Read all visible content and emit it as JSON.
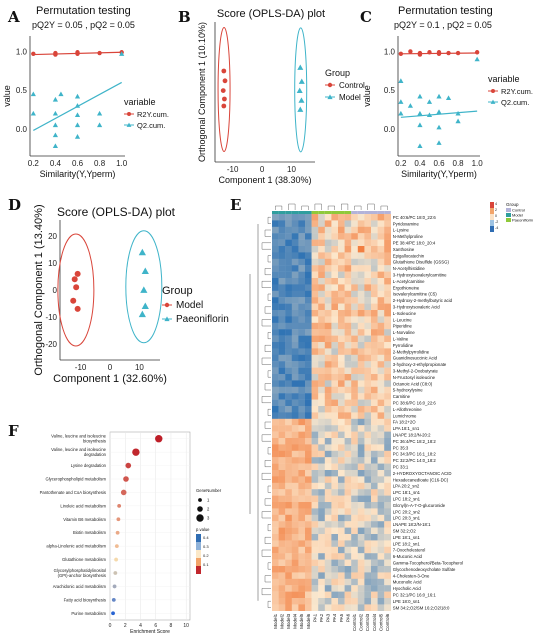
{
  "panel_letters": {
    "a": "A",
    "b": "B",
    "c": "C",
    "d": "D",
    "e": "E",
    "f": "F"
  },
  "colors": {
    "red": "#d9453a",
    "teal": "#3fb4c9",
    "blue": "#2f6db3",
    "orange": "#f2a46a",
    "cream": "#fbe2c6"
  },
  "chart_data": [
    {
      "type": "scatter",
      "id": "A",
      "title": "Permutation testing",
      "subtitle": "pQ2Y = 0.05 , pQ2 = 0.05",
      "xlabel": "Similarity(Y,Yperm)",
      "ylabel": "value",
      "xticks": [
        "0.2",
        "0.4",
        "0.6",
        "0.8",
        "1.0"
      ],
      "yticks": [
        "0.0",
        "0.5",
        "1.0"
      ],
      "xlim": [
        0.17,
        1.03
      ],
      "ylim": [
        -0.35,
        1.2
      ],
      "legend": {
        "title": "variable",
        "position": "right",
        "items": [
          "R2Y.cum.",
          "Q2.cum."
        ]
      },
      "series": [
        {
          "name": "R2Y.cum.",
          "color": "#d9453a",
          "shape": "circle",
          "points": [
            [
              0.2,
              0.97
            ],
            [
              0.4,
              0.96
            ],
            [
              0.4,
              0.98
            ],
            [
              0.6,
              0.97
            ],
            [
              0.6,
              0.99
            ],
            [
              0.8,
              0.98
            ],
            [
              1.0,
              0.99
            ]
          ],
          "fit": [
            [
              0.2,
              0.96
            ],
            [
              1.0,
              0.99
            ]
          ]
        },
        {
          "name": "Q2.cum.",
          "color": "#3fb4c9",
          "shape": "triangle",
          "points": [
            [
              0.2,
              0.45
            ],
            [
              0.2,
              0.2
            ],
            [
              0.4,
              0.38
            ],
            [
              0.4,
              0.2
            ],
            [
              0.4,
              0.05
            ],
            [
              0.4,
              -0.08
            ],
            [
              0.4,
              -0.22
            ],
            [
              0.45,
              0.45
            ],
            [
              0.6,
              0.42
            ],
            [
              0.6,
              0.3
            ],
            [
              0.6,
              0.18
            ],
            [
              0.6,
              0.05
            ],
            [
              0.6,
              -0.1
            ],
            [
              0.8,
              0.2
            ],
            [
              0.8,
              0.05
            ],
            [
              1.0,
              0.97
            ]
          ],
          "fit": [
            [
              0.2,
              -0.02
            ],
            [
              1.0,
              0.6
            ]
          ]
        }
      ]
    },
    {
      "type": "scatter",
      "id": "B",
      "title": "Score (OPLS-DA) plot",
      "xlabel": "Component 1 (38.30%)",
      "ylabel": "Orthogonal Component 1 (10.10%)",
      "xticks": [
        "-10",
        "0",
        "10"
      ],
      "xlim": [
        -16,
        18
      ],
      "ylim": [
        -10,
        10
      ],
      "legend": {
        "title": "Group",
        "position": "right",
        "items": [
          "Control",
          "Model"
        ]
      },
      "series": [
        {
          "name": "Control",
          "color": "#d9453a",
          "shape": "circle",
          "points": [
            [
              -13,
              3
            ],
            [
              -12.6,
              1.6
            ],
            [
              -13.2,
              0.2
            ],
            [
              -12.8,
              -1
            ],
            [
              -13,
              -2
            ]
          ]
        },
        {
          "name": "Model",
          "color": "#3fb4c9",
          "shape": "triangle",
          "points": [
            [
              13,
              3.5
            ],
            [
              13.5,
              1.5
            ],
            [
              12.8,
              0.2
            ],
            [
              13.4,
              -1.2
            ],
            [
              13,
              -2.5
            ]
          ]
        }
      ]
    },
    {
      "type": "scatter",
      "id": "C",
      "title": "Permutation testing",
      "subtitle": "pQ2Y = 0.1 , pQ2 = 0.05",
      "xlabel": "Similarity(Y,Yperm)",
      "ylabel": "value",
      "xticks": [
        "0.2",
        "0.4",
        "0.6",
        "0.8",
        "1.0"
      ],
      "yticks": [
        "0.0",
        "0.5",
        "1.0"
      ],
      "xlim": [
        0.17,
        1.03
      ],
      "ylim": [
        -0.35,
        1.2
      ],
      "legend": {
        "title": "variable",
        "position": "right",
        "items": [
          "R2Y.cum.",
          "Q2.cum."
        ]
      },
      "series": [
        {
          "name": "R2Y.cum.",
          "color": "#d9453a",
          "shape": "circle",
          "points": [
            [
              0.2,
              0.97
            ],
            [
              0.3,
              1.0
            ],
            [
              0.4,
              0.96
            ],
            [
              0.4,
              0.98
            ],
            [
              0.5,
              0.99
            ],
            [
              0.6,
              0.97
            ],
            [
              0.6,
              0.99
            ],
            [
              0.7,
              0.98
            ],
            [
              0.8,
              0.98
            ],
            [
              1.0,
              0.99
            ]
          ],
          "fit": [
            [
              0.2,
              0.97
            ],
            [
              1.0,
              0.98
            ]
          ]
        },
        {
          "name": "Q2.cum.",
          "color": "#3fb4c9",
          "shape": "triangle",
          "points": [
            [
              0.2,
              0.62
            ],
            [
              0.2,
              0.35
            ],
            [
              0.2,
              0.2
            ],
            [
              0.3,
              0.3
            ],
            [
              0.4,
              0.42
            ],
            [
              0.4,
              0.2
            ],
            [
              0.4,
              0.05
            ],
            [
              0.4,
              -0.22
            ],
            [
              0.5,
              0.35
            ],
            [
              0.5,
              0.18
            ],
            [
              0.6,
              0.42
            ],
            [
              0.6,
              0.22
            ],
            [
              0.6,
              0.02
            ],
            [
              0.6,
              -0.18
            ],
            [
              0.7,
              0.4
            ],
            [
              0.8,
              0.2
            ],
            [
              0.8,
              0.1
            ],
            [
              1.0,
              0.9
            ]
          ],
          "fit": [
            [
              0.2,
              0.15
            ],
            [
              1.0,
              0.23
            ]
          ]
        }
      ]
    },
    {
      "type": "scatter",
      "id": "D",
      "title": "Score (OPLS-DA) plot",
      "xlabel": "Component 1 (32.60%)",
      "ylabel": "Orthogonal Component 1 (13.40%)",
      "xticks": [
        "-10",
        "0",
        "10"
      ],
      "yticks": [
        "-20",
        "-10",
        "0",
        "10",
        "20"
      ],
      "xlim": [
        -17,
        17
      ],
      "ylim": [
        -26,
        26
      ],
      "legend": {
        "title": "Group",
        "position": "right",
        "items": [
          "Model",
          "Paeoniflorin"
        ]
      },
      "series": [
        {
          "name": "Model",
          "color": "#d9453a",
          "shape": "circle",
          "points": [
            [
              -11,
              6
            ],
            [
              -12,
              4
            ],
            [
              -11.5,
              1
            ],
            [
              -12.5,
              -4
            ],
            [
              -11,
              -7
            ]
          ]
        },
        {
          "name": "Paeoniflorin",
          "color": "#3fb4c9",
          "shape": "triangle",
          "points": [
            [
              11,
              14
            ],
            [
              12,
              7
            ],
            [
              11.5,
              0
            ],
            [
              12,
              -6
            ],
            [
              11,
              -9
            ]
          ]
        }
      ]
    },
    {
      "type": "heatmap",
      "id": "E",
      "legend": {
        "title": "Group",
        "items": [
          "Control",
          "Model",
          "Paeoniflorin"
        ],
        "colors": [
          "#b3b3d9",
          "#2f9e9e",
          "#8fc93a"
        ],
        "scale": [
          "4",
          "2",
          "0",
          "-2",
          "-4"
        ]
      },
      "rows": [
        "PC 40:6/PC 18:0_22:6",
        "Pyridoxamine",
        "L-Lysine",
        "N-Methylproline",
        "PE 38:4/PE 18:0_20:4",
        "Xanthosine",
        "Epigallocatechin",
        "Glutathione Disulfide (GSSG)",
        "N-Acetylhistidine",
        "3-Hydroxyisovalerylcarnitine",
        "L-Acetylcarnitine",
        "Ergothioneine",
        "Isovalerylcarnitine (C5)",
        "2-Hydroxy-2-methylbutyric acid",
        "3-Hydroxyisovaleric Acid",
        "L-Isoleucine",
        "L-Leucine",
        "Piperidine",
        "L-Norvaline",
        "L-Valine",
        "Pyrrolidine",
        "2-Methylpyrrolidine",
        "Guanidinosuccinic Acid",
        "3-hydroxy-2-ethylpropionate",
        "3-Methyl-2-Oxobutyrate",
        "N-Fructosyl isoleucine",
        "Octanoic Acid (C8:0)",
        "5-hydroxylysine",
        "Carnitine",
        "PC 38:6/PC 16:0_22:6",
        "L-Allothreonine",
        "Lumichrome",
        "FA 18:2+2O",
        "LPA 18:1_sn1",
        "LNAPE 18:2/N-20:2",
        "PC 36:4/PC 18:2_18:2",
        "PC 35:3",
        "PC 34:3/PC 16:1_18:2",
        "PC 32:2/PC 14:0_18:2",
        "PC 33:1",
        "2-HYDROXYOCTANOIC ACID",
        "Hexadecanedioate (C16-DC)",
        "LPA 20:2_sn2",
        "LPC 18:1_sn1",
        "LPC 18:2_sn1",
        "Glcnyl(n-A-7-O-glucuronide",
        "LPC 20:2_sn2",
        "LPC 20:3_sn1",
        "LNAPE 18:2/N-18:1",
        "SM 32:2;O2",
        "LPE 18:1_sn1",
        "LPE 18:2_sn1",
        "7-Oxocholesterol",
        "6-Muconic Acid",
        "Gamma-Tocopherol/Beta-Tocopherol",
        "Glycochenodeoxycholate Sulfate",
        "4-Cholesten-3-One",
        "Muconolic Acid",
        "Hyocholic Acid",
        "PC 32:1/PC 16:0_16:1",
        "LPE 18:0_sn1",
        "SM 34:2;O2/SM 16:2;O2/18:0"
      ],
      "columns": [
        "Model1",
        "Model2",
        "Model3",
        "Model4",
        "Model5",
        "Model6",
        "PA1",
        "PA2",
        "PA3",
        "PA4",
        "PA5",
        "PA6",
        "Control1",
        "Control2",
        "Control3",
        "Control4",
        "Control5",
        "Control6"
      ]
    },
    {
      "type": "scatter",
      "id": "F",
      "xlabel": "Enrichment Score",
      "xticks": [
        "0",
        "2",
        "4",
        "6",
        "8",
        "10"
      ],
      "xlim": [
        0,
        10.5
      ],
      "legend_size": {
        "title": "GeneNumber",
        "items": [
          "1",
          "2",
          "3"
        ]
      },
      "legend_color": {
        "title": "p.value",
        "ticks": [
          "0.4",
          "0.3",
          "0.2",
          "0.1"
        ]
      },
      "categories": [
        "Valine, leucine and isoleucine biosynthesis",
        "Valine, leucine and isoleucine degradation",
        "Lysine degradation",
        "Glycerophospholipid metabolism",
        "Pantothenate and CoA biosynthesis",
        "Linoleic acid metabolism",
        "Vitamin B6 metabolism",
        "Biotin metabolism",
        "alpha-Linolenic acid metabolism",
        "Glutathione metabolism",
        "Glycosylphosphatidylinositol (GPI)-anchor biosynthesis",
        "Arachidonic acid metabolism",
        "Fatty acid biosynthesis",
        "Purine metabolism"
      ],
      "values": [
        6.4,
        3.4,
        2.4,
        2.1,
        1.8,
        1.2,
        1.1,
        1.0,
        0.9,
        0.8,
        0.7,
        0.6,
        0.5,
        0.4
      ],
      "gene_numbers": [
        3,
        3,
        2,
        2,
        2,
        1,
        1,
        1,
        1,
        1,
        1,
        1,
        1,
        1
      ],
      "p_values": [
        0.01,
        0.02,
        0.05,
        0.07,
        0.09,
        0.12,
        0.14,
        0.16,
        0.18,
        0.22,
        0.26,
        0.3,
        0.36,
        0.42
      ]
    }
  ]
}
